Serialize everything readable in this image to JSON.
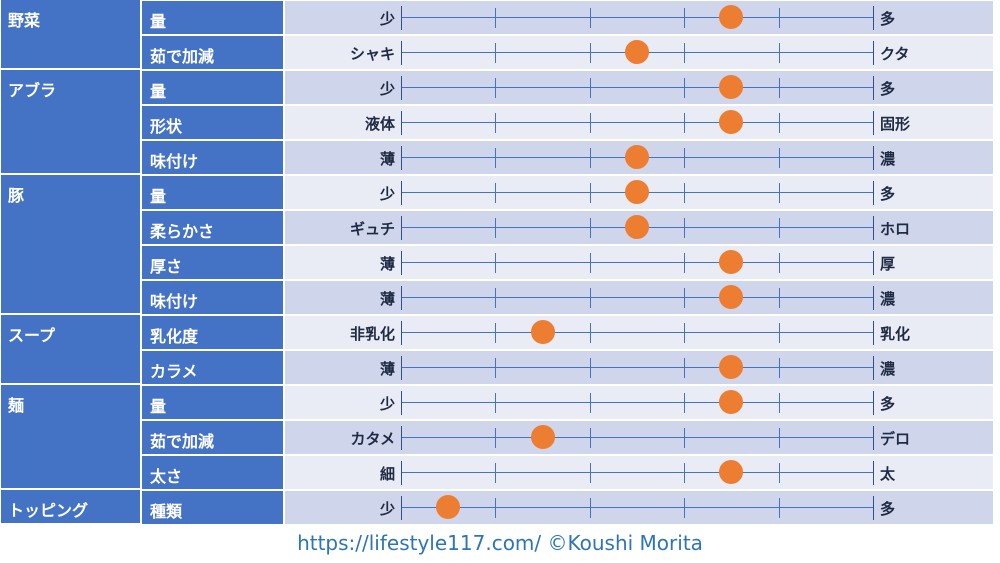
{
  "colors": {
    "header_blue": "#4472c4",
    "row_shade_dark": "#cfd5ea",
    "row_shade_light": "#e9ebf5",
    "marker_orange": "#ed7d31",
    "footer_text": "#2e75b6"
  },
  "scale_steps": 5,
  "categories": [
    {
      "name": "野菜",
      "rows": [
        {
          "item": "量",
          "low": "少",
          "high": "多",
          "level": 3.5
        },
        {
          "item": "茹で加減",
          "low": "シャキ",
          "high": "クタ",
          "level": 2.5
        }
      ]
    },
    {
      "name": "アブラ",
      "rows": [
        {
          "item": "量",
          "low": "少",
          "high": "多",
          "level": 3.5
        },
        {
          "item": "形状",
          "low": "液体",
          "high": "固形",
          "level": 3.5
        },
        {
          "item": "味付け",
          "low": "薄",
          "high": "濃",
          "level": 2.5
        }
      ]
    },
    {
      "name": "豚",
      "rows": [
        {
          "item": "量",
          "low": "少",
          "high": "多",
          "level": 2.5
        },
        {
          "item": "柔らかさ",
          "low": "ギュチ",
          "high": "ホロ",
          "level": 2.5
        },
        {
          "item": "厚さ",
          "low": "薄",
          "high": "厚",
          "level": 3.5
        },
        {
          "item": "味付け",
          "low": "薄",
          "high": "濃",
          "level": 3.5
        }
      ]
    },
    {
      "name": "スープ",
      "rows": [
        {
          "item": "乳化度",
          "low": "非乳化",
          "high": "乳化",
          "level": 1.5
        },
        {
          "item": "カラメ",
          "low": "薄",
          "high": "濃",
          "level": 3.5
        }
      ]
    },
    {
      "name": "麺",
      "rows": [
        {
          "item": "量",
          "low": "少",
          "high": "多",
          "level": 3.5
        },
        {
          "item": "茹で加減",
          "low": "カタメ",
          "high": "デロ",
          "level": 1.5
        },
        {
          "item": "太さ",
          "low": "細",
          "high": "太",
          "level": 3.5
        }
      ]
    },
    {
      "name": "トッピング",
      "rows": [
        {
          "item": "種類",
          "low": "少",
          "high": "多",
          "level": 0.5
        }
      ]
    }
  ],
  "footer": "https://lifestyle117.com/   ©Koushi Morita"
}
